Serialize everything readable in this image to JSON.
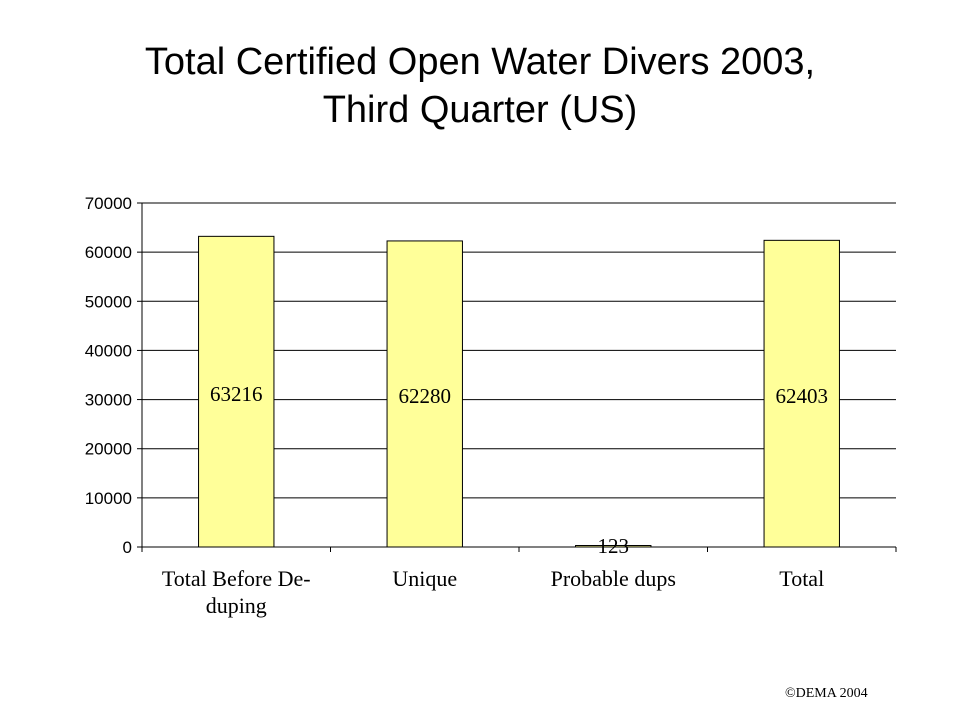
{
  "chart_data": {
    "type": "bar",
    "title_lines": [
      "Total Certified Open Water Divers 2003,",
      "Third Quarter (US)"
    ],
    "categories": [
      [
        "Total Before De-",
        "duping"
      ],
      [
        "Unique"
      ],
      [
        "Probable dups"
      ],
      [
        "Total"
      ]
    ],
    "values": [
      63216,
      62280,
      123,
      62403
    ],
    "data_labels": [
      "63216",
      "62280",
      "123",
      "62403"
    ],
    "ylim": [
      0,
      70000
    ],
    "yticks": [
      0,
      10000,
      20000,
      30000,
      40000,
      50000,
      60000,
      70000
    ],
    "ytick_labels": [
      "0",
      "10000",
      "20000",
      "30000",
      "40000",
      "50000",
      "60000",
      "70000"
    ],
    "grid": true,
    "legend": false,
    "bar_color": "#FFFF99",
    "bar_edge_color": "#000000"
  },
  "footer": {
    "copyright": "©DEMA 2004"
  }
}
